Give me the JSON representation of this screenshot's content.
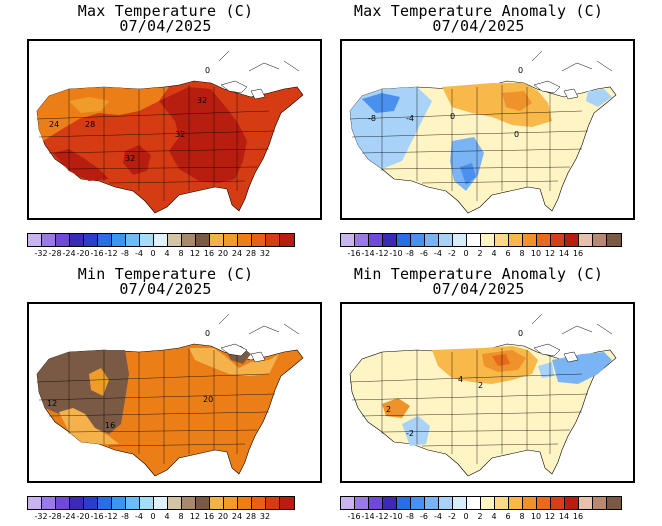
{
  "palettes": {
    "abs": [
      "#c8b4ee",
      "#9b7ae6",
      "#6f4ad6",
      "#3b2ab4",
      "#2a3ec8",
      "#2a6ee6",
      "#3c96f0",
      "#6cbcf6",
      "#a6dcf6",
      "#dff2fa",
      "#d4c4a4",
      "#a88a6a",
      "#7a5a44",
      "#f5b24a",
      "#f09c2a",
      "#ec7e18",
      "#e6601a",
      "#d63c14",
      "#b81e10"
    ],
    "anom": [
      "#c8b4ee",
      "#9b7ae6",
      "#6f4ad6",
      "#3b2ab4",
      "#2a6ee6",
      "#4a90ee",
      "#7ab4f4",
      "#a8d2f8",
      "#d6eefc",
      "#ffffff",
      "#fff4c4",
      "#fbd88a",
      "#f8b84a",
      "#f0922a",
      "#e86a1e",
      "#d4401a",
      "#b81e10",
      "#e8c0b0",
      "#b88870",
      "#7a5a44"
    ]
  },
  "panels": [
    {
      "id": "max-temp",
      "title1": "Max Temperature (C)",
      "title2": "07/04/2025",
      "palette": "abs",
      "ticks": [
        "-32",
        "-28",
        "-24",
        "-20",
        "-16",
        "-12",
        "-8",
        "-4",
        "0",
        "4",
        "8",
        "12",
        "16",
        "20",
        "24",
        "28",
        "32"
      ],
      "labels": [
        {
          "text": "32"
        },
        {
          "text": "24"
        },
        {
          "text": "28"
        },
        {
          "text": "32"
        },
        {
          "text": "32"
        },
        {
          "text": "0"
        }
      ]
    },
    {
      "id": "max-anom",
      "title1": "Max Temperature Anomaly (C)",
      "title2": "07/04/2025",
      "palette": "anom",
      "ticks": [
        "-16",
        "-14",
        "-12",
        "-10",
        "-8",
        "-6",
        "-4",
        "-2",
        "0",
        "2",
        "4",
        "6",
        "8",
        "10",
        "12",
        "14",
        "16"
      ],
      "labels": [
        {
          "text": "0"
        },
        {
          "text": "-8"
        },
        {
          "text": "-4"
        },
        {
          "text": "0"
        },
        {
          "text": "0"
        }
      ]
    },
    {
      "id": "min-temp",
      "title1": "Min Temperature (C)",
      "title2": "07/04/2025",
      "palette": "abs",
      "ticks": [
        "-32",
        "-28",
        "-24",
        "-20",
        "-16",
        "-12",
        "-8",
        "-4",
        "0",
        "4",
        "8",
        "12",
        "16",
        "20",
        "24",
        "28",
        "32"
      ],
      "labels": [
        {
          "text": "12"
        },
        {
          "text": "20"
        },
        {
          "text": "16"
        },
        {
          "text": "0"
        }
      ]
    },
    {
      "id": "min-anom",
      "title1": "Min Temperature Anomaly (C)",
      "title2": "07/04/2025",
      "palette": "anom",
      "ticks": [
        "-16",
        "-14",
        "-12",
        "-10",
        "-8",
        "-6",
        "-4",
        "-2",
        "0",
        "2",
        "4",
        "6",
        "8",
        "10",
        "12",
        "14",
        "16"
      ],
      "labels": [
        {
          "text": "4"
        },
        {
          "text": "2"
        },
        {
          "text": "-2"
        },
        {
          "text": "2"
        },
        {
          "text": "0"
        }
      ]
    }
  ]
}
